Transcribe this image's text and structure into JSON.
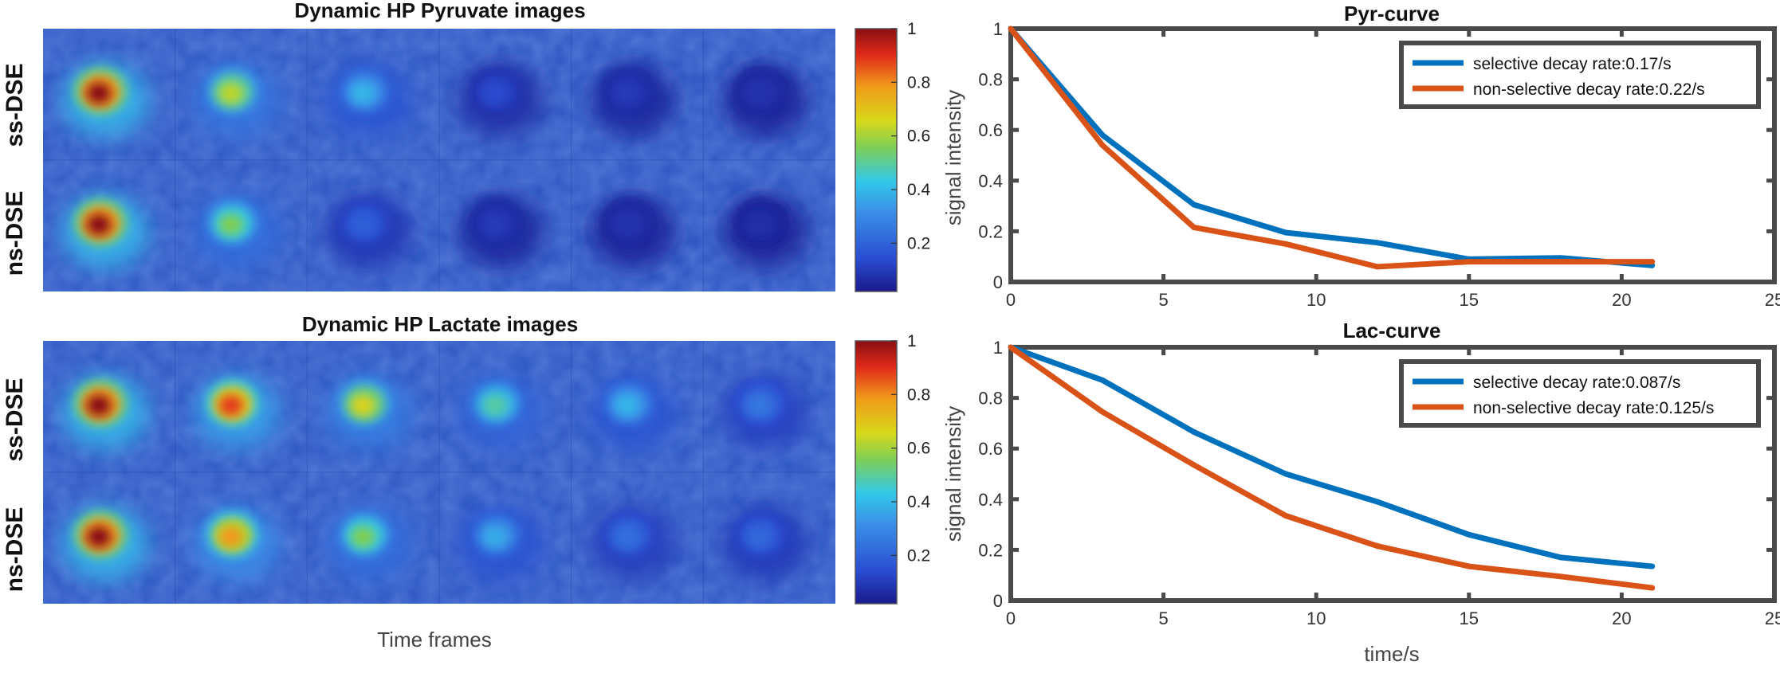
{
  "colors": {
    "blue": "#0072BD",
    "orange": "#D95319",
    "frame": "#4a4a4a"
  },
  "image_panels": [
    {
      "title": "Dynamic HP Pyruvate images",
      "rows": [
        "ss-DSE",
        "ns-DSE"
      ],
      "colorbar": {
        "ticks": [
          "1",
          "0.8",
          "0.6",
          "0.4",
          "0.2"
        ],
        "tick_values": [
          1,
          0.8,
          0.6,
          0.4,
          0.2
        ],
        "range": [
          0.02,
          1
        ]
      },
      "intensity": [
        [
          1.0,
          0.62,
          0.38,
          0.12,
          0.08,
          0.06
        ],
        [
          1.0,
          0.55,
          0.18,
          0.08,
          0.06,
          0.05
        ]
      ]
    },
    {
      "title": "Dynamic HP Lactate images",
      "rows": [
        "ss-DSE",
        "ns-DSE"
      ],
      "colorbar": {
        "ticks": [
          "1",
          "0.8",
          "0.6",
          "0.4",
          "0.2"
        ],
        "tick_values": [
          1,
          0.8,
          0.6,
          0.4,
          0.2
        ],
        "range": [
          0.02,
          1
        ]
      },
      "intensity": [
        [
          1.0,
          0.88,
          0.66,
          0.48,
          0.38,
          0.24
        ],
        [
          1.0,
          0.78,
          0.55,
          0.36,
          0.22,
          0.2
        ]
      ]
    }
  ],
  "image_xlabel": "Time frames",
  "chart_data": [
    {
      "type": "line",
      "title": "Pyr-curve",
      "xlabel": "",
      "ylabel": "signal intensity",
      "xlim": [
        0,
        25
      ],
      "ylim": [
        0,
        1
      ],
      "xticks": [
        "0",
        "5",
        "10",
        "15",
        "20",
        "25"
      ],
      "xtick_values": [
        0,
        5,
        10,
        15,
        20,
        25
      ],
      "yticks": [
        "0",
        "0.2",
        "0.4",
        "0.6",
        "0.8",
        "1"
      ],
      "ytick_values": [
        0,
        0.2,
        0.4,
        0.6,
        0.8,
        1
      ],
      "legend_position": "top-right",
      "x": [
        0,
        3,
        6,
        9,
        12,
        15,
        18,
        21
      ],
      "series": [
        {
          "name": "selective decay rate:0.17/s",
          "color": "blue",
          "values": [
            1.0,
            0.58,
            0.305,
            0.195,
            0.155,
            0.09,
            0.095,
            0.065
          ]
        },
        {
          "name": "non-selective decay rate:0.22/s",
          "color": "orange",
          "values": [
            1.0,
            0.54,
            0.215,
            0.15,
            0.06,
            0.08,
            0.08,
            0.08
          ]
        }
      ]
    },
    {
      "type": "line",
      "title": "Lac-curve",
      "xlabel": "time/s",
      "ylabel": "signal intensity",
      "xlim": [
        0,
        25
      ],
      "ylim": [
        0,
        1
      ],
      "xticks": [
        "0",
        "5",
        "10",
        "15",
        "20",
        "25"
      ],
      "xtick_values": [
        0,
        5,
        10,
        15,
        20,
        25
      ],
      "yticks": [
        "0",
        "0.2",
        "0.4",
        "0.6",
        "0.8",
        "1"
      ],
      "ytick_values": [
        0,
        0.2,
        0.4,
        0.6,
        0.8,
        1
      ],
      "legend_position": "top-right",
      "x": [
        0,
        3,
        6,
        9,
        12,
        15,
        18,
        21
      ],
      "series": [
        {
          "name": "selective decay rate:0.087/s",
          "color": "blue",
          "values": [
            1.0,
            0.87,
            0.665,
            0.5,
            0.39,
            0.26,
            0.17,
            0.135
          ]
        },
        {
          "name": "non-selective decay rate:0.125/s",
          "color": "orange",
          "values": [
            1.0,
            0.745,
            0.535,
            0.335,
            0.215,
            0.135,
            0.095,
            0.05
          ]
        }
      ]
    }
  ]
}
